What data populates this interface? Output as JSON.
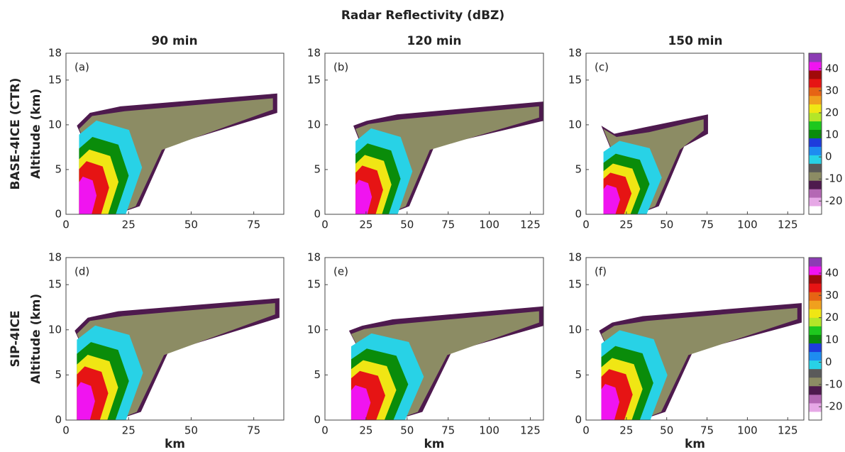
{
  "figure": {
    "title": "Radar Reflectivity (dBZ)",
    "columns": [
      "90 min",
      "120 min",
      "150 min"
    ],
    "rows": [
      "BASE-4ICE (CTR)",
      "SIP-4ICE"
    ]
  },
  "colorbar": {
    "clim": [
      -26,
      47
    ],
    "ticks": [
      40,
      30,
      20,
      10,
      0,
      -10,
      -20
    ],
    "colors": [
      "#ffffff",
      "#e6a8e6",
      "#b468b4",
      "#4e1a4e",
      "#8c8c64",
      "#5a5a5a",
      "#28d2e6",
      "#1e8cf0",
      "#1e3cdc",
      "#0a8c0a",
      "#1ec81e",
      "#b4e628",
      "#f0e614",
      "#f0a01e",
      "#e66414",
      "#e61414",
      "#a00a0a",
      "#f014f0",
      "#8c3cb4"
    ]
  },
  "chart_data": [
    {
      "type": "contour",
      "label": "(a)",
      "xlim": [
        0,
        87
      ],
      "xticks": [
        0,
        25,
        50,
        75
      ],
      "ylim": [
        0,
        18
      ],
      "yticks": [
        0,
        5,
        10,
        15,
        18
      ],
      "y_label": "Altitude (km)"
    },
    {
      "type": "contour",
      "label": "(b)",
      "xlim": [
        0,
        133
      ],
      "xticks": [
        0,
        25,
        50,
        75,
        100,
        125
      ],
      "ylim": [
        0,
        18
      ],
      "yticks": [
        0,
        5,
        10,
        15,
        18
      ]
    },
    {
      "type": "contour",
      "label": "(c)",
      "xlim": [
        0,
        135
      ],
      "xticks": [
        0,
        25,
        50,
        75,
        100,
        125
      ],
      "ylim": [
        0,
        18
      ],
      "yticks": [
        0,
        5,
        10,
        15,
        18
      ]
    },
    {
      "type": "contour",
      "label": "(d)",
      "xlim": [
        0,
        87
      ],
      "xticks": [
        0,
        25,
        50,
        75
      ],
      "ylim": [
        0,
        18
      ],
      "yticks": [
        0,
        5,
        10,
        15,
        18
      ],
      "y_label": "Altitude (km)",
      "x_label": "km"
    },
    {
      "type": "contour",
      "label": "(e)",
      "xlim": [
        0,
        133
      ],
      "xticks": [
        0,
        25,
        50,
        75,
        100,
        125
      ],
      "ylim": [
        0,
        18
      ],
      "yticks": [
        0,
        5,
        10,
        15,
        18
      ],
      "x_label": "km"
    },
    {
      "type": "contour",
      "label": "(f)",
      "xlim": [
        0,
        135
      ],
      "xticks": [
        0,
        25,
        50,
        75,
        100,
        125
      ],
      "ylim": [
        0,
        18
      ],
      "yticks": [
        0,
        5,
        10,
        15,
        18
      ],
      "x_label": "km"
    }
  ]
}
